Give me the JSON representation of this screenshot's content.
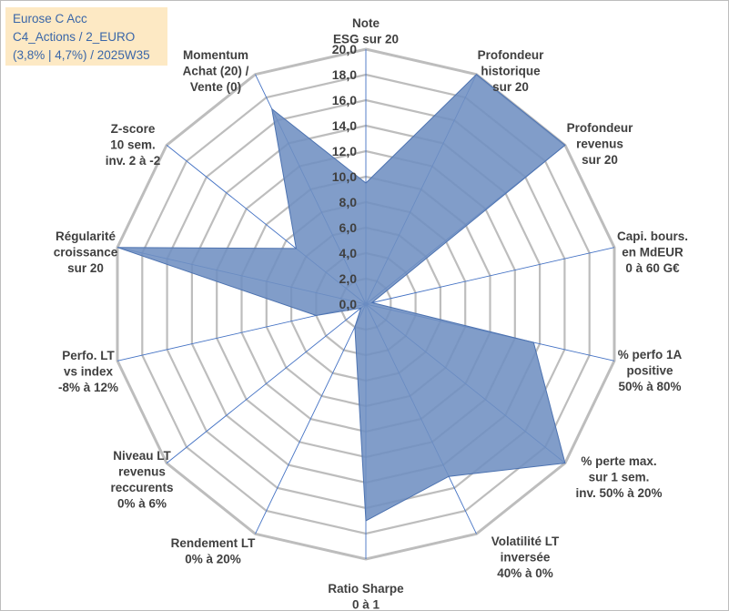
{
  "header": {
    "line1": "Eurose C Acc",
    "line2": "C4_Actions / 2_EURO",
    "line3": "(3,8% | 4,7%) / 2025W35"
  },
  "chart_data": {
    "type": "radar",
    "rmin": 0,
    "rmax": 20,
    "ticks": [
      "0,0",
      "2,0",
      "4,0",
      "6,0",
      "8,0",
      "10,0",
      "12,0",
      "14,0",
      "16,0",
      "18,0",
      "20,0"
    ],
    "categories": [
      [
        "Note",
        "ESG sur 20"
      ],
      [
        "Profondeur",
        "historique",
        "sur 20"
      ],
      [
        "Profondeur",
        "revenus",
        "sur 20"
      ],
      [
        "Capi. bours.",
        "en MdEUR",
        "0 à 60 G€"
      ],
      [
        "% perfo 1A",
        "positive",
        "50% à 80%"
      ],
      [
        "% perte max.",
        "sur 1 sem.",
        "inv. 50% à 20%"
      ],
      [
        "Volatilité LT",
        "inversée",
        "40% à 0%"
      ],
      [
        "Ratio Sharpe",
        "0 à 1"
      ],
      [
        "Rendement LT",
        "0% à 20%"
      ],
      [
        "Niveau LT",
        "revenus",
        "reccurents",
        "0% à 6%"
      ],
      [
        "Perfo. LT",
        "vs index",
        "-8% à 12%"
      ],
      [
        "Régularité",
        "croissance",
        "sur 20"
      ],
      [
        "Z-score",
        "10 sem.",
        "inv. 2 à -2"
      ],
      [
        "Momentum",
        "Achat (20) /",
        "Vente (0)"
      ]
    ],
    "values": [
      9.5,
      20,
      20,
      0.5,
      13.5,
      20,
      15,
      17,
      2,
      0.5,
      4,
      20,
      7,
      17
    ],
    "grid": true,
    "colors": {
      "fill": "#6f90c2",
      "stroke": "#4c72b0",
      "grid": "#bdbdbd",
      "spoke": "#4472c4"
    }
  }
}
